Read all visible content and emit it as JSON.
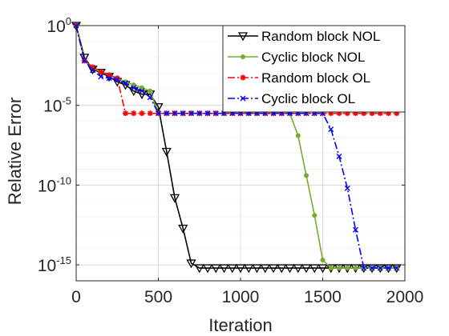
{
  "chart_data": {
    "type": "line",
    "title": "",
    "xlabel": "Iteration",
    "ylabel": "Relative Error",
    "xlim": [
      0,
      2000
    ],
    "ylim_log10": [
      -16,
      0
    ],
    "y_scale": "log",
    "grid": true,
    "legend_position": "top-right",
    "xticks": [
      {
        "value": 0,
        "label": "0"
      },
      {
        "value": 500,
        "label": "500"
      },
      {
        "value": 1000,
        "label": "1000"
      },
      {
        "value": 1500,
        "label": "1500"
      },
      {
        "value": 2000,
        "label": "2000"
      }
    ],
    "yticks": [
      {
        "value": 1,
        "base": "10",
        "exp": "0"
      },
      {
        "value": 1e-05,
        "base": "10",
        "exp": "-5"
      },
      {
        "value": 1e-10,
        "base": "10",
        "exp": "-10"
      },
      {
        "value": 1e-15,
        "base": "10",
        "exp": "-15"
      }
    ],
    "series": [
      {
        "name": "Random block NOL",
        "color": "#000000",
        "line_style": "solid",
        "marker": "triangle-down",
        "x": [
          0,
          50,
          100,
          150,
          200,
          250,
          300,
          350,
          400,
          450,
          500,
          550,
          600,
          650,
          700,
          750,
          800,
          850,
          900,
          950,
          1000,
          1050,
          1100,
          1150,
          1200,
          1250,
          1300,
          1350,
          1400,
          1450,
          1500,
          1550,
          1600,
          1650,
          1700,
          1750,
          1800,
          1850,
          1900,
          1950
        ],
        "y": [
          1,
          0.01,
          0.00179,
          0.00113,
          0.00063,
          0.000302,
          0.000191,
          7.9e-05,
          5.01e-05,
          5.01e-05,
          7.9e-06,
          1.26e-08,
          1.58e-11,
          1.91e-13,
          1.26e-15,
          6.3e-16,
          6.3e-16,
          6.3e-16,
          6.3e-16,
          6.3e-16,
          6.3e-16,
          6.3e-16,
          6.3e-16,
          6.3e-16,
          6.3e-16,
          6.3e-16,
          6.3e-16,
          6.3e-16,
          6.3e-16,
          6.3e-16,
          6.3e-16,
          6.3e-16,
          6.3e-16,
          6.3e-16,
          6.3e-16,
          6.3e-16,
          6.3e-16,
          6.3e-16,
          6.3e-16,
          6.3e-16
        ]
      },
      {
        "name": "Cyclic block NOL",
        "color": "#77ac30",
        "line_style": "solid",
        "marker": "dot",
        "x": [
          0,
          50,
          100,
          150,
          200,
          250,
          300,
          350,
          400,
          450,
          500,
          550,
          600,
          650,
          700,
          750,
          800,
          850,
          900,
          950,
          1000,
          1050,
          1100,
          1150,
          1200,
          1250,
          1300,
          1350,
          1400,
          1450,
          1500,
          1550,
          1600,
          1650,
          1700,
          1750,
          1800,
          1850,
          1900,
          1950
        ],
        "y": [
          1,
          0.0063,
          0.00219,
          0.00121,
          0.000794,
          0.000501,
          0.000302,
          0.000191,
          0.000126,
          7.9e-05,
          3.16e-06,
          3.16e-06,
          3.16e-06,
          3.16e-06,
          3.16e-06,
          3.16e-06,
          3.16e-06,
          3.16e-06,
          3.16e-06,
          3.16e-06,
          3.16e-06,
          3.16e-06,
          3.16e-06,
          3.16e-06,
          3.16e-06,
          3.16e-06,
          3.16e-06,
          1.26e-07,
          3.98e-10,
          1.26e-12,
          2e-15,
          6.3e-16,
          6.3e-16,
          6.3e-16,
          6.3e-16,
          6.3e-16,
          6.3e-16,
          6.3e-16,
          6.3e-16,
          6.3e-16
        ]
      },
      {
        "name": "Random block OL",
        "color": "#ff0000",
        "line_style": "dashdot",
        "marker": "asterisk",
        "x": [
          0,
          50,
          100,
          150,
          200,
          250,
          300,
          350,
          400,
          450,
          500,
          550,
          600,
          650,
          700,
          750,
          800,
          850,
          900,
          950,
          1000,
          1050,
          1100,
          1150,
          1200,
          1250,
          1300,
          1350,
          1400,
          1450,
          1500,
          1550,
          1600,
          1650,
          1700,
          1750,
          1800,
          1850,
          1900,
          1950
        ],
        "y": [
          1,
          0.0063,
          0.00251,
          0.00126,
          0.000794,
          0.000501,
          3.16e-06,
          3.16e-06,
          3.16e-06,
          3.16e-06,
          3.16e-06,
          3.16e-06,
          3.16e-06,
          3.16e-06,
          3.16e-06,
          3.16e-06,
          3.16e-06,
          3.16e-06,
          3.16e-06,
          3.16e-06,
          3.16e-06,
          3.16e-06,
          3.16e-06,
          3.16e-06,
          3.16e-06,
          3.16e-06,
          3.16e-06,
          3.16e-06,
          3.16e-06,
          3.16e-06,
          3.16e-06,
          3.16e-06,
          3.16e-06,
          3.16e-06,
          3.16e-06,
          3.16e-06,
          3.16e-06,
          3.16e-06,
          3.16e-06,
          3.16e-06
        ]
      },
      {
        "name": "Cyclic block OL",
        "color": "#0000ff",
        "line_style": "dashdot",
        "marker": "x",
        "x": [
          0,
          50,
          100,
          150,
          200,
          250,
          300,
          350,
          400,
          450,
          500,
          550,
          600,
          650,
          700,
          750,
          800,
          850,
          900,
          950,
          1000,
          1050,
          1100,
          1150,
          1200,
          1250,
          1300,
          1350,
          1400,
          1450,
          1500,
          1550,
          1600,
          1650,
          1700,
          1750,
          1800,
          1850,
          1900,
          1950
        ],
        "y": [
          1,
          0.0063,
          0.00158,
          0.00063,
          0.000501,
          0.000398,
          0.000251,
          0.000126,
          7.9e-05,
          3.16e-05,
          3.16e-06,
          3.16e-06,
          3.16e-06,
          3.16e-06,
          3.16e-06,
          3.16e-06,
          3.16e-06,
          3.16e-06,
          3.16e-06,
          3.16e-06,
          3.16e-06,
          3.16e-06,
          3.16e-06,
          3.16e-06,
          3.16e-06,
          3.16e-06,
          3.16e-06,
          3.16e-06,
          3.16e-06,
          3.16e-06,
          3.16e-06,
          3.16e-07,
          6.3e-09,
          6.3e-11,
          1.58e-13,
          6.3e-16,
          6.3e-16,
          6.3e-16,
          6.3e-16,
          6.3e-16
        ]
      }
    ]
  }
}
